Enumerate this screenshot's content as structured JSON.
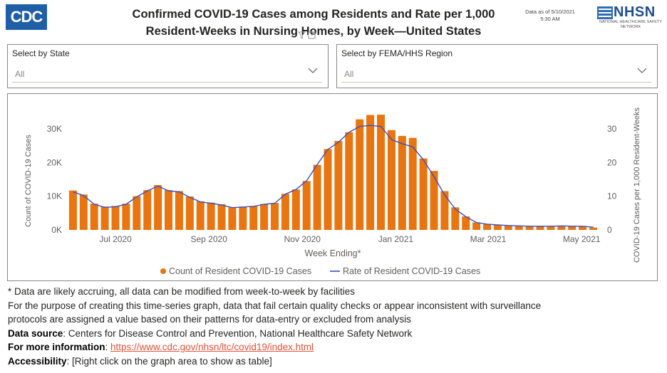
{
  "header": {
    "logo_text": "CDC",
    "title_line1": "Confirmed COVID-19 Cases among Residents and Rate per 1,000",
    "title_line2": "Resident-Weeks in Nursing Homes, by Week—United States",
    "data_as_of_line1": "Data as of 5/10/2021",
    "data_as_of_line2": "5:30 AM",
    "nhsn_text": "NHSN",
    "nhsn_sub": "NATIONAL HEALTHCARE SAFETY NETWORK",
    "filter_icon": "filter-icon",
    "focus_icon": "focus-mode-icon"
  },
  "filters": {
    "state": {
      "label": "Select by State",
      "value": "All"
    },
    "region": {
      "label": "Select by FEMA/HHS Region",
      "value": "All"
    }
  },
  "colors": {
    "bar": "#e8750f",
    "line": "#3c4fc2",
    "accent": "#1f5fa8",
    "link": "#e0533a"
  },
  "chart_data": {
    "type": "bar",
    "title": "Confirmed COVID-19 Cases among Residents and Rate per 1,000 Resident-Weeks in Nursing Homes, by Week—United States",
    "xlabel": "Week Ending*",
    "ylabel": "Count of COVID-19 Cases",
    "y2label": "COVID-19 Cases per 1,000 Resident-Weeks",
    "ylim": [
      0,
      34000
    ],
    "y2lim": [
      0,
      34
    ],
    "yticks": [
      "0K",
      "10K",
      "20K",
      "30K"
    ],
    "yticks_values": [
      0,
      10000,
      20000,
      30000
    ],
    "y2ticks": [
      "0",
      "10",
      "20",
      "30"
    ],
    "y2ticks_values": [
      0,
      10,
      20,
      30
    ],
    "xtick_labels": [
      "Jul 2020",
      "Sep 2020",
      "Nov 2020",
      "Jan 2021",
      "Mar 2021",
      "May 2021"
    ],
    "xtick_positions": [
      4.5,
      13.3,
      22.1,
      30.9,
      39.6,
      48.4
    ],
    "legend_position": "bottom-center",
    "grid": false,
    "series": [
      {
        "name": "Count of Resident COVID-19 Cases",
        "kind": "bar",
        "axis": "left",
        "values": [
          11700,
          10500,
          7800,
          6900,
          7100,
          7800,
          10000,
          11800,
          13300,
          11800,
          11500,
          9900,
          8500,
          8100,
          7600,
          6700,
          6900,
          7100,
          7700,
          8000,
          10700,
          12000,
          14500,
          19300,
          24000,
          26400,
          29000,
          32800,
          34100,
          34200,
          29600,
          27900,
          27300,
          21200,
          17500,
          11500,
          6700,
          4000,
          2200,
          1700,
          1500,
          1300,
          1200,
          1100,
          1100,
          1100,
          1200,
          1100,
          1100,
          700
        ]
      },
      {
        "name": "Rate of Resident COVID-19 Cases",
        "kind": "line",
        "axis": "right",
        "values": [
          11.3,
          10.2,
          7.6,
          6.7,
          6.9,
          7.6,
          9.8,
          11.6,
          13.0,
          11.6,
          11.3,
          9.7,
          8.3,
          7.9,
          7.4,
          6.6,
          6.8,
          7.0,
          7.6,
          7.9,
          10.6,
          12.0,
          14.6,
          19.4,
          23.9,
          26.0,
          29.0,
          30.7,
          31.0,
          30.7,
          26.8,
          25.6,
          24.6,
          20.8,
          15.8,
          10.4,
          6.2,
          3.9,
          2.2,
          1.7,
          1.5,
          1.3,
          1.2,
          1.1,
          1.1,
          1.1,
          1.2,
          1.1,
          1.1,
          0.8
        ]
      }
    ]
  },
  "notes": {
    "line1": "* Data are likely accruing, all data can be modified from week-to-week by facilities",
    "line2": "For the purpose of creating this time-series graph, data that fail certain quality checks or appear inconsistent with surveillance",
    "line3": "protocols are assigned a value based on their patterns for data-entry or excluded from analysis",
    "source_label": "Data source",
    "source_text": ": Centers for Disease Control and Prevention, National Healthcare Safety Network",
    "info_label": "For more information",
    "info_sep": ": ",
    "info_link": "https://www.cdc.gov/nhsn/ltc/covid19/index.html",
    "access_label": "Accessibility",
    "access_text": ": [Right click on the graph area to show as table]"
  }
}
